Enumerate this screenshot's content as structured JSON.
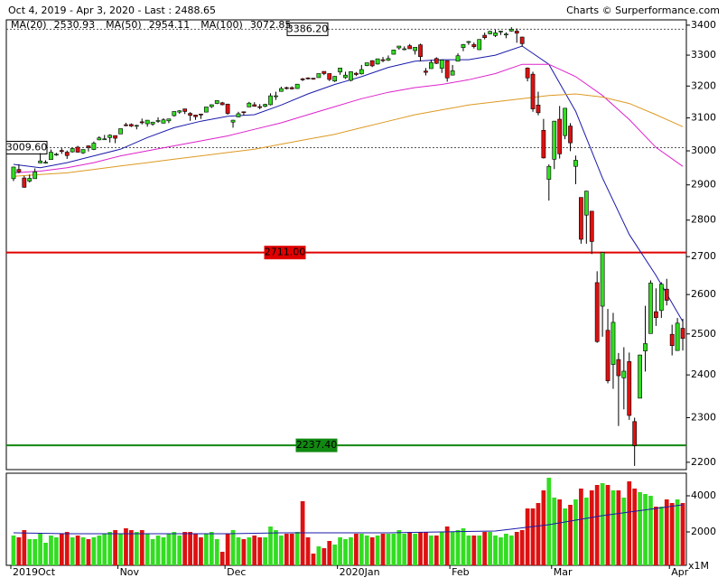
{
  "chart_data": {
    "type": "candlestick",
    "subtitle": "Oct 4, 2019 - Apr 3, 2020 - Last : 2488.65",
    "credit": "Charts © Surperformance.com",
    "log": true,
    "ylim": [
      2184,
      3418
    ],
    "yticks": [
      2200,
      2300,
      2400,
      2500,
      2600,
      2700,
      2800,
      2900,
      3000,
      3100,
      3200,
      3300,
      3400
    ],
    "xticks": [
      {
        "value": 0,
        "label": "2019Oct"
      },
      {
        "value": 20,
        "label": "Nov"
      },
      {
        "value": 40,
        "label": "Dec"
      },
      {
        "value": 61,
        "label": "2020Jan"
      },
      {
        "value": 82,
        "label": "Feb"
      },
      {
        "value": 101,
        "label": "Mar"
      },
      {
        "value": 123,
        "label": "Apr"
      }
    ],
    "up_color": "#33dd22",
    "down_color": "#dd1111",
    "open": [
      2918,
      2945,
      2920,
      2911,
      2918,
      2964,
      2966,
      2974,
      2990,
      3001,
      2996,
      2997,
      3011,
      2994,
      3015,
      3004,
      3033,
      3036,
      3040,
      3046,
      3051,
      3079,
      3080,
      3076,
      3088,
      3082,
      3081,
      3090,
      3084,
      3091,
      3107,
      3118,
      3128,
      3114,
      3109,
      3112,
      3118,
      3135,
      3145,
      3147,
      3143,
      3087,
      3103,
      3119,
      3134,
      3141,
      3135,
      3136,
      3141,
      3167,
      3183,
      3195,
      3195,
      3192,
      3223,
      3226,
      3225,
      3227,
      3247,
      3240,
      3216,
      3245,
      3227,
      3218,
      3241,
      3239,
      3266,
      3282,
      3271,
      3285,
      3283,
      3303,
      3324,
      3321,
      3331,
      3315,
      3334,
      3248,
      3256,
      3289,
      3257,
      3282,
      3235,
      3280,
      3325,
      3344,
      3335,
      3318,
      3366,
      3371,
      3365,
      3378,
      3370,
      3380,
      3380,
      3360,
      3258,
      3238,
      3140,
      3062,
      2916,
      2975,
      3096,
      3046,
      3075,
      2954,
      2864,
      2814,
      2825,
      2631,
      2570,
      2509,
      2425,
      2437,
      2393,
      2432,
      2291,
      2345,
      2458,
      2501,
      2556,
      2559,
      2614,
      2499,
      2459,
      2514
    ],
    "high": [
      2953,
      2960,
      2926,
      2930,
      2948,
      2993,
      2972,
      3004,
      2994,
      3008,
      3001,
      3008,
      3015,
      3004,
      3016,
      3028,
      3044,
      3048,
      3050,
      3046,
      3067,
      3085,
      3083,
      3079,
      3098,
      3093,
      3088,
      3102,
      3099,
      3097,
      3120,
      3124,
      3128,
      3118,
      3110,
      3113,
      3133,
      3142,
      3154,
      3150,
      3144,
      3094,
      3119,
      3120,
      3150,
      3149,
      3143,
      3144,
      3177,
      3182,
      3198,
      3198,
      3199,
      3206,
      3226,
      3228,
      3226,
      3240,
      3247,
      3240,
      3232,
      3258,
      3246,
      3247,
      3245,
      3268,
      3275,
      3283,
      3288,
      3294,
      3299,
      3317,
      3330,
      3329,
      3337,
      3326,
      3338,
      3258,
      3285,
      3293,
      3285,
      3282,
      3268,
      3306,
      3337,
      3347,
      3342,
      3352,
      3375,
      3381,
      3385,
      3381,
      3376,
      3393,
      3389,
      3361,
      3260,
      3246,
      3182,
      3097,
      2960,
      3091,
      3137,
      3131,
      3084,
      2986,
      2864,
      2883,
      2825,
      2661,
      2711,
      2563,
      2553,
      2453,
      2467,
      2454,
      2300,
      2449,
      2571,
      2637,
      2616,
      2632,
      2641,
      2523,
      2540,
      2538
    ],
    "low": [
      2911,
      2934,
      2892,
      2907,
      2918,
      2963,
      2962,
      2973,
      2985,
      2991,
      2976,
      2995,
      2995,
      2991,
      2998,
      3002,
      3032,
      3034,
      3025,
      3023,
      3051,
      3074,
      3072,
      3065,
      3080,
      3073,
      3076,
      3085,
      3083,
      3084,
      3104,
      3113,
      3112,
      3091,
      3094,
      3097,
      3117,
      3131,
      3143,
      3139,
      3110,
      3070,
      3102,
      3108,
      3134,
      3135,
      3127,
      3133,
      3139,
      3156,
      3182,
      3189,
      3189,
      3191,
      3216,
      3221,
      3220,
      3227,
      3235,
      3216,
      3213,
      3236,
      3223,
      3215,
      3232,
      3237,
      3264,
      3261,
      3269,
      3277,
      3281,
      3302,
      3318,
      3316,
      3321,
      3302,
      3280,
      3234,
      3256,
      3271,
      3242,
      3214,
      3235,
      3280,
      3313,
      3334,
      3322,
      3317,
      3352,
      3369,
      3360,
      3367,
      3356,
      3378,
      3341,
      3328,
      3215,
      3119,
      3108,
      2977,
      2855,
      2946,
      2977,
      3035,
      2999,
      2902,
      2735,
      2735,
      2707,
      2478,
      2493,
      2380,
      2367,
      2281,
      2319,
      2295,
      2192,
      2345,
      2408,
      2501,
      2520,
      2540,
      2572,
      2447,
      2459,
      2459
    ],
    "close": [
      2952,
      2938,
      2893,
      2919,
      2938,
      2970,
      2966,
      2996,
      2990,
      2998,
      2986,
      3007,
      2996,
      3004,
      3010,
      3023,
      3039,
      3036,
      3047,
      3038,
      3067,
      3078,
      3075,
      3077,
      3085,
      3093,
      3087,
      3092,
      3094,
      3097,
      3120,
      3122,
      3120,
      3108,
      3104,
      3110,
      3134,
      3141,
      3154,
      3141,
      3114,
      3093,
      3113,
      3118,
      3146,
      3136,
      3133,
      3142,
      3169,
      3169,
      3192,
      3192,
      3191,
      3206,
      3221,
      3224,
      3224,
      3240,
      3240,
      3221,
      3231,
      3258,
      3235,
      3246,
      3237,
      3253,
      3275,
      3265,
      3288,
      3283,
      3289,
      3317,
      3330,
      3321,
      3321,
      3326,
      3295,
      3244,
      3276,
      3273,
      3284,
      3226,
      3249,
      3298,
      3335,
      3345,
      3328,
      3352,
      3358,
      3379,
      3374,
      3380,
      3370,
      3386,
      3373,
      3338,
      3226,
      3128,
      3116,
      2979,
      2954,
      3090,
      2991,
      3130,
      3024,
      2972,
      2747,
      2882,
      2741,
      2481,
      2711,
      2386,
      2529,
      2398,
      2409,
      2305,
      2237,
      2448,
      2476,
      2630,
      2541,
      2627,
      2585,
      2471,
      2527,
      2488.65
    ],
    "volume": [
      1800,
      1700,
      2100,
      1600,
      1600,
      1900,
      1400,
      1800,
      1700,
      1900,
      2000,
      1700,
      1800,
      1700,
      1600,
      1700,
      1800,
      1900,
      2000,
      2100,
      1900,
      2200,
      2100,
      2000,
      2100,
      1900,
      1600,
      1800,
      1700,
      1900,
      2000,
      1800,
      2000,
      2000,
      1900,
      1700,
      1900,
      2000,
      1600,
      900,
      1900,
      2100,
      1700,
      1600,
      1700,
      1800,
      1700,
      1700,
      2300,
      2100,
      1800,
      1900,
      1900,
      2000,
      3700,
      1700,
      800,
      1200,
      1100,
      1500,
      1300,
      1700,
      1600,
      1700,
      1900,
      1900,
      1800,
      1700,
      1800,
      1900,
      1900,
      1900,
      2100,
      1900,
      2000,
      1900,
      2000,
      2000,
      1800,
      1800,
      2000,
      2300,
      2000,
      2100,
      2200,
      1800,
      1800,
      1800,
      2000,
      2000,
      1800,
      1700,
      1900,
      1800,
      2000,
      2100,
      3300,
      3300,
      3600,
      4300,
      5000,
      3900,
      3800,
      3300,
      3500,
      3800,
      4400,
      3900,
      4300,
      4600,
      4700,
      4600,
      4300,
      4300,
      3900,
      4800,
      4400,
      4200,
      4100,
      4000,
      3400,
      3400,
      3800,
      3600,
      3800,
      3600
    ],
    "ma": [
      {
        "name": "MA(20)",
        "last": 2530.93,
        "color": "#1a1aaa",
        "x": [
          0,
          5,
          10,
          15,
          20,
          25,
          30,
          35,
          40,
          45,
          50,
          55,
          60,
          65,
          70,
          75,
          80,
          85,
          90,
          95,
          100,
          105,
          110,
          115,
          120,
          125
        ],
        "values": [
          2960,
          2950,
          2965,
          2985,
          3005,
          3040,
          3070,
          3090,
          3105,
          3110,
          3140,
          3175,
          3205,
          3230,
          3260,
          3280,
          3285,
          3285,
          3300,
          3330,
          3270,
          3120,
          2920,
          2760,
          2650,
          2531
        ]
      },
      {
        "name": "MA(50)",
        "last": 2954.11,
        "color": "#dd22cc",
        "x": [
          0,
          5,
          10,
          15,
          20,
          25,
          30,
          35,
          40,
          45,
          50,
          55,
          60,
          65,
          70,
          75,
          80,
          85,
          90,
          95,
          100,
          105,
          110,
          115,
          120,
          125
        ],
        "values": [
          2935,
          2940,
          2950,
          2965,
          2985,
          3000,
          3015,
          3030,
          3045,
          3065,
          3085,
          3110,
          3135,
          3160,
          3180,
          3195,
          3205,
          3220,
          3240,
          3270,
          3270,
          3230,
          3170,
          3095,
          3010,
          2954
        ]
      },
      {
        "name": "MA(100)",
        "last": 3072.85,
        "color": "#dd9922",
        "x": [
          0,
          5,
          10,
          15,
          20,
          25,
          30,
          35,
          40,
          45,
          50,
          55,
          60,
          65,
          70,
          75,
          80,
          85,
          90,
          95,
          100,
          105,
          110,
          115,
          120,
          125
        ],
        "values": [
          2925,
          2930,
          2935,
          2945,
          2955,
          2965,
          2975,
          2985,
          2995,
          3005,
          3020,
          3035,
          3050,
          3070,
          3090,
          3110,
          3125,
          3140,
          3150,
          3160,
          3170,
          3175,
          3165,
          3145,
          3110,
          3073
        ]
      }
    ],
    "hlines": [
      {
        "value": 3386.2,
        "label": "3386.20",
        "color": "#555555",
        "dotted": true
      },
      {
        "value": 3009.6,
        "label": "3009.60",
        "color": "#555555",
        "dotted": true
      },
      {
        "value": 2711,
        "label": "2711.00",
        "color": "#e00000",
        "dotted": false
      },
      {
        "value": 2237.4,
        "label": "2237.40",
        "color": "#118811",
        "dotted": false
      }
    ],
    "volume_panel": {
      "ylim": [
        150,
        5250
      ],
      "yticks": [
        2000,
        4000
      ],
      "unit": "x1M",
      "ma": {
        "color": "#1a1aaa",
        "x": [
          0,
          10,
          20,
          30,
          40,
          50,
          60,
          70,
          80,
          90,
          100,
          110,
          120,
          125
        ],
        "values": [
          1950,
          1900,
          1900,
          1900,
          1900,
          1950,
          1950,
          1950,
          2000,
          2050,
          2400,
          2900,
          3300,
          3500
        ]
      }
    }
  }
}
